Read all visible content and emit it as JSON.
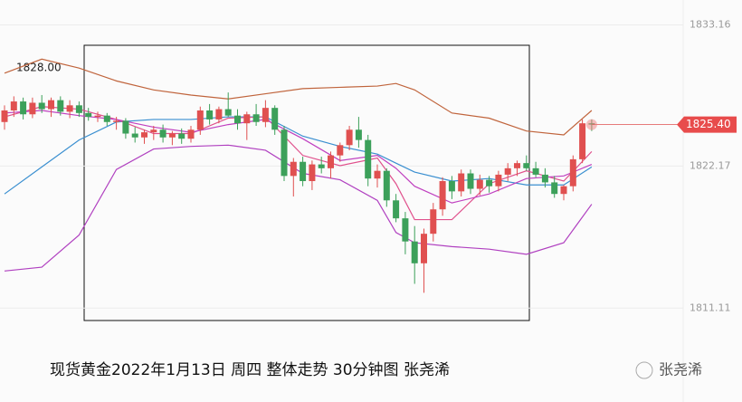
{
  "chart_data": {
    "type": "candlestick",
    "caption": "现货黄金2022年1月13日 周四 整体走势  30分钟图  张尧浠",
    "watermark": "张尧浠",
    "annotation": "1828.00",
    "ylim": [
      1803.8,
      1835.1
    ],
    "yticks": [
      1833.16,
      1822.17,
      1811.11
    ],
    "price_tag": {
      "value": 1825.4,
      "label": "1825.40"
    },
    "up_color": "#e05050",
    "down_color": "#3ca05a",
    "open": [
      1825.6,
      1826.5,
      1827.2,
      1826.2,
      1827.1,
      1826.6,
      1827.3,
      1826.4,
      1826.9,
      1826.3,
      1826.0,
      1826.1,
      1825.6,
      1825.7,
      1824.7,
      1824.4,
      1824.8,
      1825.0,
      1824.4,
      1824.7,
      1824.3,
      1825.0,
      1826.5,
      1825.8,
      1826.6,
      1826.1,
      1825.5,
      1826.2,
      1825.6,
      1826.7,
      1825.0,
      1821.4,
      1822.5,
      1821.0,
      1822.3,
      1822.0,
      1823.0,
      1823.8,
      1825.0,
      1824.2,
      1821.2,
      1821.8,
      1819.5,
      1818.1,
      1816.3,
      1814.6,
      1816.9,
      1818.8,
      1821.0,
      1820.2,
      1821.6,
      1820.4,
      1821.1,
      1820.6,
      1821.5,
      1822.0,
      1822.4,
      1822.0,
      1821.5,
      1820.9,
      1820.0,
      1820.6,
      1822.7,
      1825.5
    ],
    "high": [
      1826.9,
      1827.6,
      1827.5,
      1827.5,
      1827.7,
      1827.5,
      1827.6,
      1827.3,
      1827.2,
      1826.7,
      1826.4,
      1826.3,
      1826.0,
      1825.9,
      1825.2,
      1825.0,
      1825.3,
      1825.4,
      1824.9,
      1825.1,
      1825.3,
      1826.8,
      1827.0,
      1826.8,
      1827.9,
      1826.6,
      1826.4,
      1827.0,
      1827.3,
      1826.9,
      1825.3,
      1822.8,
      1822.9,
      1822.6,
      1822.9,
      1823.3,
      1824.0,
      1825.3,
      1826.0,
      1824.6,
      1822.3,
      1822.0,
      1820.0,
      1818.6,
      1817.5,
      1817.3,
      1819.3,
      1821.3,
      1821.4,
      1821.9,
      1821.9,
      1821.5,
      1821.4,
      1821.8,
      1822.4,
      1822.6,
      1823.0,
      1822.5,
      1822.0,
      1821.4,
      1820.7,
      1823.0,
      1825.8,
      1825.8
    ],
    "low": [
      1825.0,
      1826.0,
      1825.8,
      1825.9,
      1826.3,
      1826.0,
      1826.1,
      1825.9,
      1826.0,
      1825.7,
      1825.6,
      1825.3,
      1825.0,
      1824.3,
      1824.0,
      1823.9,
      1824.2,
      1824.0,
      1823.8,
      1823.9,
      1824.0,
      1824.6,
      1825.4,
      1825.5,
      1826.0,
      1825.0,
      1824.2,
      1825.3,
      1825.2,
      1824.6,
      1821.0,
      1819.8,
      1820.6,
      1820.3,
      1821.6,
      1821.2,
      1822.5,
      1823.4,
      1823.6,
      1820.6,
      1820.5,
      1819.0,
      1817.8,
      1815.3,
      1813.0,
      1812.3,
      1816.3,
      1818.3,
      1819.6,
      1819.8,
      1820.0,
      1819.9,
      1820.1,
      1820.2,
      1821.0,
      1821.4,
      1821.8,
      1821.3,
      1820.5,
      1819.7,
      1819.5,
      1820.2,
      1822.4,
      1824.9
    ],
    "close": [
      1826.5,
      1827.2,
      1826.2,
      1827.1,
      1826.6,
      1827.3,
      1826.4,
      1826.9,
      1826.3,
      1826.0,
      1826.1,
      1825.6,
      1825.7,
      1824.7,
      1824.4,
      1824.8,
      1825.0,
      1824.4,
      1824.7,
      1824.3,
      1825.0,
      1826.5,
      1825.8,
      1826.6,
      1826.1,
      1825.5,
      1826.2,
      1825.6,
      1826.7,
      1825.0,
      1821.4,
      1822.5,
      1821.0,
      1822.3,
      1822.0,
      1823.0,
      1823.8,
      1825.0,
      1824.2,
      1821.2,
      1821.8,
      1819.5,
      1818.1,
      1816.3,
      1814.6,
      1816.9,
      1818.8,
      1821.0,
      1820.2,
      1821.6,
      1820.4,
      1821.1,
      1820.6,
      1821.5,
      1822.0,
      1822.4,
      1822.0,
      1821.5,
      1820.9,
      1820.0,
      1820.6,
      1822.7,
      1825.5,
      1825.4
    ],
    "lines": [
      {
        "color": "#c0643c",
        "x": [
          0,
          4,
          8,
          12,
          16,
          20,
          24,
          28,
          32,
          36,
          40,
          42,
          44,
          48,
          52,
          56,
          60,
          63
        ],
        "values": [
          1829.4,
          1830.5,
          1829.8,
          1828.8,
          1828.1,
          1827.7,
          1827.4,
          1827.8,
          1828.2,
          1828.3,
          1828.4,
          1828.6,
          1828.1,
          1826.3,
          1825.9,
          1824.9,
          1824.6,
          1826.5
        ]
      },
      {
        "color": "#b040c0",
        "x": [
          0,
          4,
          8,
          12,
          16,
          20,
          24,
          28,
          32,
          36,
          40,
          42,
          44,
          48,
          52,
          56,
          60,
          63
        ],
        "values": [
          1814.0,
          1814.3,
          1816.8,
          1821.9,
          1823.5,
          1823.7,
          1823.8,
          1823.4,
          1821.6,
          1821.1,
          1819.5,
          1817.0,
          1816.2,
          1815.9,
          1815.7,
          1815.3,
          1816.2,
          1819.2
        ]
      },
      {
        "color": "#3a8fd0",
        "x": [
          0,
          4,
          8,
          12,
          16,
          20,
          24,
          28,
          32,
          36,
          40,
          42,
          44,
          48,
          52,
          56,
          60,
          63
        ],
        "values": [
          1820.0,
          1822.1,
          1824.2,
          1825.6,
          1825.8,
          1825.8,
          1826.0,
          1826.0,
          1824.5,
          1823.7,
          1823.1,
          1822.4,
          1821.7,
          1821.0,
          1821.2,
          1820.7,
          1820.7,
          1822.1
        ]
      },
      {
        "color": "#e0508c",
        "x": [
          0,
          4,
          8,
          12,
          16,
          20,
          24,
          28,
          32,
          36,
          40,
          42,
          44,
          48,
          52,
          56,
          60,
          63
        ],
        "values": [
          1826.0,
          1826.8,
          1826.6,
          1825.8,
          1824.7,
          1824.7,
          1825.9,
          1826.0,
          1823.0,
          1822.2,
          1822.8,
          1820.8,
          1818.0,
          1818.0,
          1820.8,
          1821.8,
          1821.0,
          1823.3
        ]
      },
      {
        "color": "#c040c0",
        "x": [
          0,
          4,
          8,
          12,
          16,
          20,
          24,
          28,
          32,
          36,
          40,
          42,
          44,
          48,
          52,
          56,
          60,
          63
        ],
        "values": [
          1826.3,
          1826.5,
          1826.1,
          1825.8,
          1825.2,
          1824.8,
          1825.4,
          1825.8,
          1824.3,
          1822.6,
          1823.0,
          1822.0,
          1820.6,
          1819.3,
          1820.0,
          1821.2,
          1821.4,
          1822.3
        ]
      }
    ]
  }
}
